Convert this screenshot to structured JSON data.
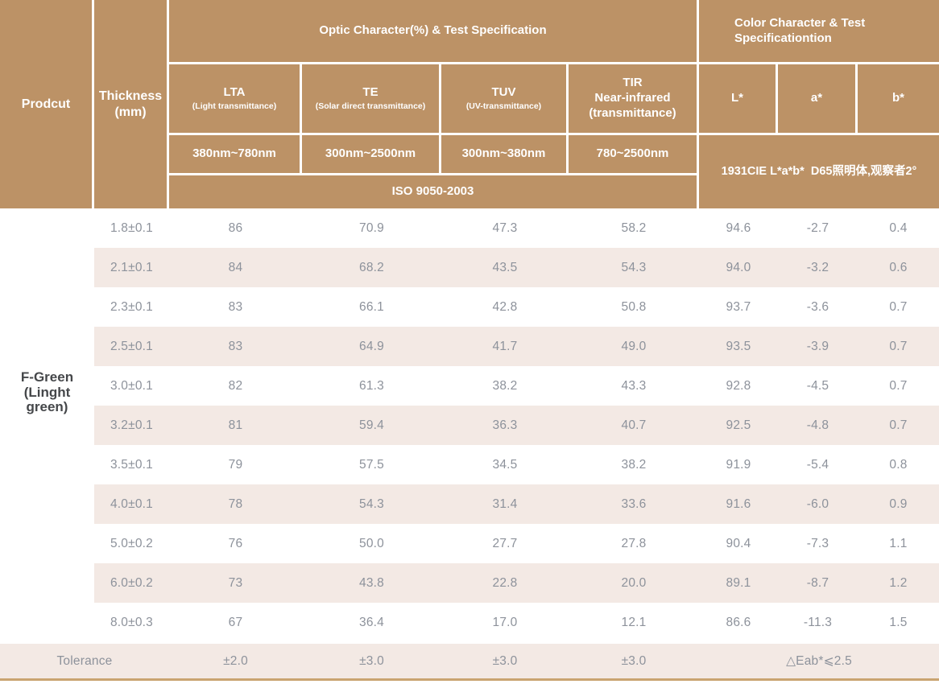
{
  "theme": {
    "header_bg": "#bc9266",
    "header_text": "#ffffff",
    "stripe_bg": "#f3e9e4",
    "value_text": "#8d929b",
    "product_text": "#45474a",
    "bottom_rule": "#c9a470"
  },
  "table": {
    "header": {
      "product": "Prodcut",
      "thickness": "Thickness\n(mm)",
      "optic_group": "Optic Character(%) & Test Specification",
      "color_group": "Color Character & Test\nSpecificationtion",
      "optic_columns": [
        {
          "title": "LTA",
          "subtitle": "(Light transmittance)",
          "range": "380nm~780nm"
        },
        {
          "title": "TE",
          "subtitle": "(Solar direct transmittance)",
          "range": "300nm~2500nm"
        },
        {
          "title": "TUV",
          "subtitle": "(UV-transmittance)",
          "range": "300nm~380nm"
        },
        {
          "title": "TIR\nNear-infrared\n(transmittance)",
          "subtitle": "",
          "range": "780~2500nm"
        }
      ],
      "color_columns": [
        "L*",
        "a*",
        "b*"
      ],
      "optic_standard": "ISO 9050-2003",
      "color_standard": "1931CIE L*a*b*  D65照明体,观察者2°"
    },
    "product_name": "F-Green\n(Linght\ngreen)",
    "rows": [
      {
        "thickness": "1.8±0.1",
        "values": [
          "86",
          "70.9",
          "47.3",
          "58.2",
          "94.6",
          "-2.7",
          "0.4"
        ]
      },
      {
        "thickness": "2.1±0.1",
        "values": [
          "84",
          "68.2",
          "43.5",
          "54.3",
          "94.0",
          "-3.2",
          "0.6"
        ]
      },
      {
        "thickness": "2.3±0.1",
        "values": [
          "83",
          "66.1",
          "42.8",
          "50.8",
          "93.7",
          "-3.6",
          "0.7"
        ]
      },
      {
        "thickness": "2.5±0.1",
        "values": [
          "83",
          "64.9",
          "41.7",
          "49.0",
          "93.5",
          "-3.9",
          "0.7"
        ]
      },
      {
        "thickness": "3.0±0.1",
        "values": [
          "82",
          "61.3",
          "38.2",
          "43.3",
          "92.8",
          "-4.5",
          "0.7"
        ]
      },
      {
        "thickness": "3.2±0.1",
        "values": [
          "81",
          "59.4",
          "36.3",
          "40.7",
          "92.5",
          "-4.8",
          "0.7"
        ]
      },
      {
        "thickness": "3.5±0.1",
        "values": [
          "79",
          "57.5",
          "34.5",
          "38.2",
          "91.9",
          "-5.4",
          "0.8"
        ]
      },
      {
        "thickness": "4.0±0.1",
        "values": [
          "78",
          "54.3",
          "31.4",
          "33.6",
          "91.6",
          "-6.0",
          "0.9"
        ]
      },
      {
        "thickness": "5.0±0.2",
        "values": [
          "76",
          "50.0",
          "27.7",
          "27.8",
          "90.4",
          "-7.3",
          "1.1"
        ]
      },
      {
        "thickness": "6.0±0.2",
        "values": [
          "73",
          "43.8",
          "22.8",
          "20.0",
          "89.1",
          "-8.7",
          "1.2"
        ]
      },
      {
        "thickness": "8.0±0.3",
        "values": [
          "67",
          "36.4",
          "17.0",
          "12.1",
          "86.6",
          "-11.3",
          "1.5"
        ]
      }
    ],
    "tolerance": {
      "label": "Tolerance",
      "values": [
        "±2.0",
        "±3.0",
        "±3.0",
        "±3.0"
      ],
      "color_value": "△Eab*⩽2.5"
    }
  }
}
